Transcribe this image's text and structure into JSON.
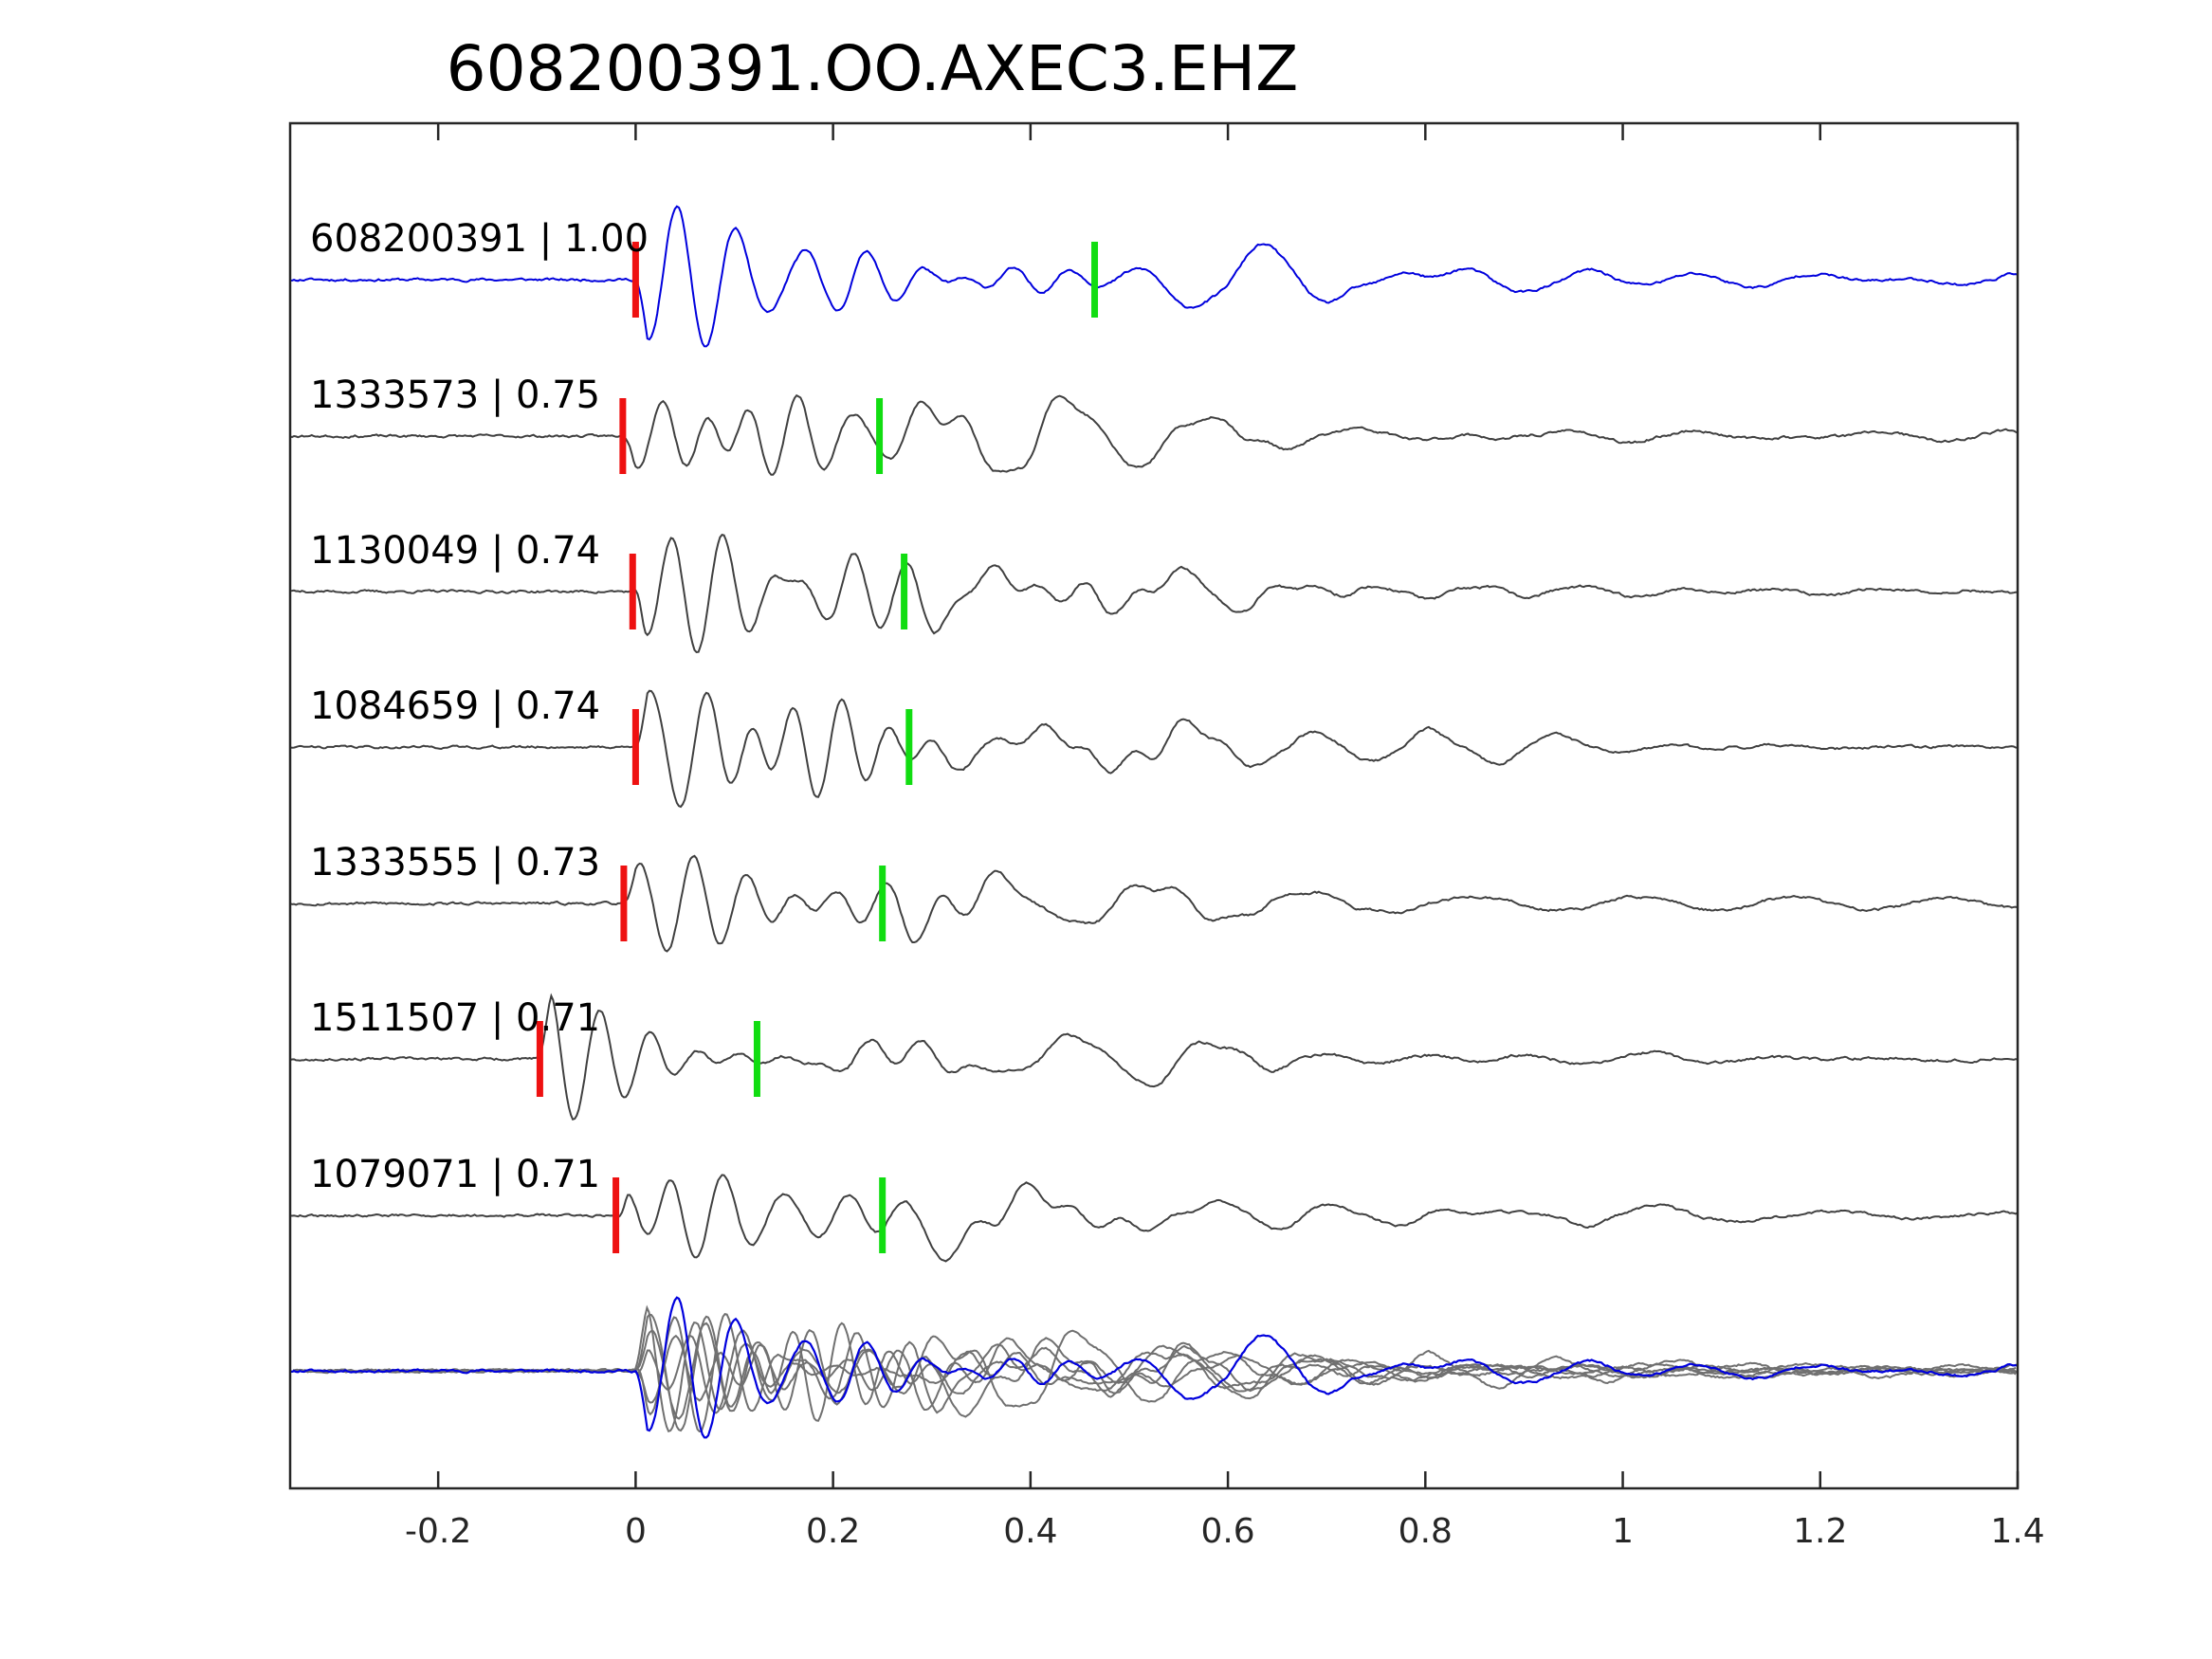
{
  "chart_data": {
    "type": "line",
    "title": "608200391.OO.AXEC3.EHZ",
    "xlabel": "",
    "ylabel": "",
    "xlim": [
      -0.35,
      1.4
    ],
    "x_ticks": [
      -0.2,
      0,
      0.2,
      0.4,
      0.6,
      0.8,
      1,
      1.2,
      1.4
    ],
    "x_tick_labels": [
      "-0.2",
      "0",
      "0.2",
      "0.4",
      "0.6",
      "0.8",
      "1",
      "1.2",
      "1.4"
    ],
    "grid": false,
    "legend": false,
    "colors": {
      "template": "#0000dd",
      "neighbor": "#404040",
      "overlay_neighbor": "#707070",
      "p_pick": "#ee1111",
      "s_pick": "#11dd11",
      "axes": "#262626"
    },
    "traces": [
      {
        "event_id": "608200391",
        "cc": "1.00",
        "label": "608200391 | 1.00",
        "is_template": true,
        "p_pick": 0.0,
        "s_pick": 0.465,
        "amp": 1.0,
        "seed": 11
      },
      {
        "event_id": "1333573",
        "cc": "0.75",
        "label": "1333573 | 0.75",
        "is_template": false,
        "p_pick": -0.013,
        "s_pick": 0.247,
        "amp": 1.0,
        "seed": 23
      },
      {
        "event_id": "1130049",
        "cc": "0.74",
        "label": "1130049 | 0.74",
        "is_template": false,
        "p_pick": -0.003,
        "s_pick": 0.272,
        "amp": 1.0,
        "seed": 37
      },
      {
        "event_id": "1084659",
        "cc": "0.74",
        "label": "1084659 | 0.74",
        "is_template": false,
        "p_pick": 0.0,
        "s_pick": 0.277,
        "amp": 0.95,
        "seed": 41
      },
      {
        "event_id": "1333555",
        "cc": "0.73",
        "label": "1333555 | 0.73",
        "is_template": false,
        "p_pick": -0.012,
        "s_pick": 0.25,
        "amp": 1.0,
        "seed": 53
      },
      {
        "event_id": "1511507",
        "cc": "0.71",
        "label": "1511507 | 0.71",
        "is_template": false,
        "p_pick": -0.097,
        "s_pick": 0.123,
        "amp": 1.0,
        "seed": 67
      },
      {
        "event_id": "1079071",
        "cc": "0.71",
        "label": "1079071 | 0.71",
        "is_template": false,
        "p_pick": -0.02,
        "s_pick": 0.25,
        "amp": 0.95,
        "seed": 79
      }
    ],
    "stack": {
      "description_shown": false,
      "includes_all_traces": true
    }
  }
}
